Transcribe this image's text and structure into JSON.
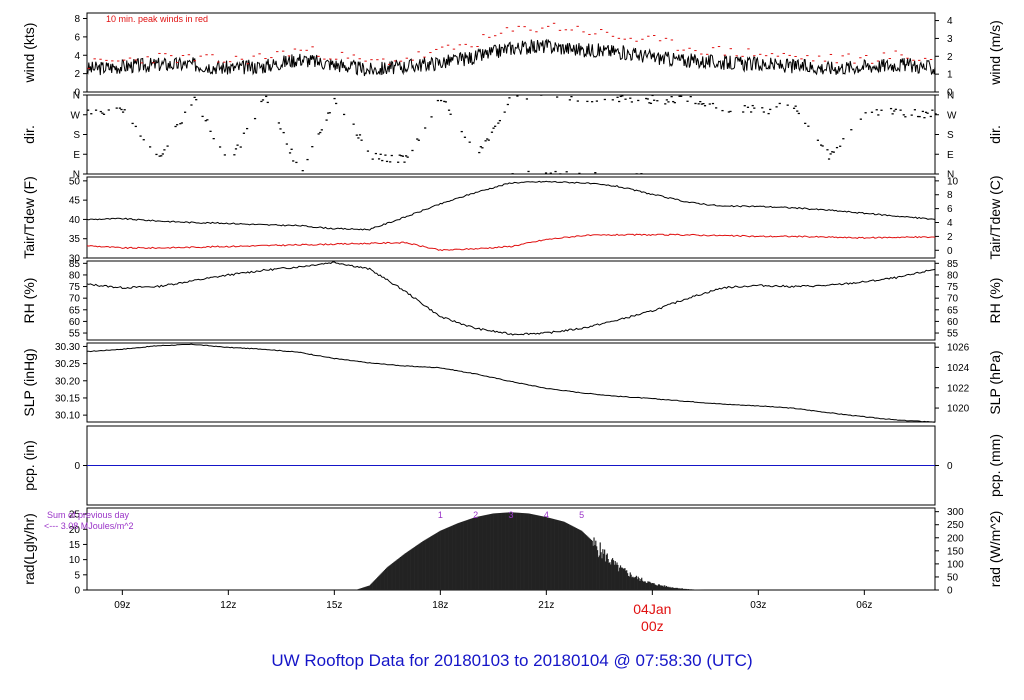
{
  "chart_data": {
    "type": "line",
    "title": "UW Rooftop Data for 20180103  to  20180104 @ 07:58:30  (UTC)",
    "x_axis": {
      "ticks": [
        "09z",
        "12z",
        "15z",
        "18z",
        "21z",
        "00z",
        "03z",
        "06z"
      ],
      "tick_hours": [
        9,
        12,
        15,
        18,
        21,
        24,
        27,
        30
      ],
      "range_hours": [
        8,
        32
      ],
      "day_marker": {
        "label_top": "04Jan",
        "label_bottom": "00z",
        "hour": 24,
        "color": "#e01010"
      }
    },
    "panels": [
      {
        "id": "wind",
        "ylabel_left": "wind (kts)",
        "ylabel_right": "wind (m/s)",
        "left_ticks": [
          0,
          2,
          4,
          6,
          8
        ],
        "left_range": [
          0,
          8.6
        ],
        "right_ticks": [
          0,
          1,
          2,
          3,
          4
        ],
        "right_factor": 0.5144,
        "annotation": "10 min. peak winds in red",
        "annotation_color": "#e01010",
        "series": [
          {
            "name": "wind speed",
            "color": "#000000",
            "x": [
              8,
              9,
              10,
              11,
              12,
              13,
              14,
              15,
              16,
              17,
              18,
              19,
              20,
              21,
              22,
              23,
              24,
              25,
              26,
              27,
              28,
              29,
              30,
              31,
              32
            ],
            "y": [
              2.5,
              2.8,
              3.0,
              3.0,
              2.6,
              2.8,
              3.6,
              3.0,
              2.4,
              2.8,
              3.2,
              3.8,
              4.8,
              5.0,
              4.6,
              4.4,
              3.8,
              3.4,
              3.2,
              3.0,
              2.8,
              2.6,
              2.8,
              3.0,
              2.6
            ]
          },
          {
            "name": "peak winds",
            "color": "#e01010",
            "x": [
              8,
              9,
              10,
              11,
              12,
              13,
              14,
              15,
              16,
              17,
              18,
              19,
              20,
              21,
              22,
              23,
              24,
              25,
              26,
              27,
              28,
              29,
              30,
              31,
              32
            ],
            "y": [
              3.0,
              3.4,
              3.8,
              3.6,
              3.4,
              3.8,
              4.6,
              4.0,
              3.2,
              3.6,
              4.4,
              5.4,
              6.6,
              7.2,
              6.8,
              6.0,
              5.6,
              4.8,
              4.4,
              4.2,
              3.8,
              3.6,
              3.6,
              4.0,
              3.4
            ]
          }
        ]
      },
      {
        "id": "dir",
        "ylabel_left": "dir.",
        "ylabel_right": "dir.",
        "left_ticks": [
          "N",
          "E",
          "S",
          "W",
          "N"
        ],
        "left_values": [
          0,
          90,
          180,
          270,
          360
        ],
        "left_range": [
          0,
          360
        ],
        "series": [
          {
            "name": "direction",
            "color": "#000000",
            "x": [
              8,
              9,
              10,
              11,
              12,
              13,
              14,
              15,
              16,
              17,
              18,
              19,
              20,
              21,
              22,
              23,
              24,
              25,
              26,
              27,
              28,
              29,
              30,
              31,
              32
            ],
            "y": [
              285,
              290,
              60,
              350,
              40,
              355,
              10,
              345,
              80,
              70,
              350,
              75,
              350,
              355,
              350,
              345,
              340,
              335,
              300,
              290,
              310,
              80,
              290,
              280,
              275
            ]
          }
        ]
      },
      {
        "id": "temp",
        "ylabel_left": "Tair/Tdew (F)",
        "ylabel_right": "Tair/Tdew (C)",
        "left_ticks": [
          30,
          35,
          40,
          45,
          50
        ],
        "left_range": [
          30,
          51
        ],
        "right_ticks": [
          0,
          2,
          4,
          6,
          8,
          10
        ],
        "series": [
          {
            "name": "Tair",
            "color": "#000000",
            "x": [
              8,
              9,
              10,
              11,
              12,
              13,
              14,
              15,
              16,
              17,
              18,
              19,
              20,
              21,
              22,
              23,
              24,
              25,
              26,
              27,
              28,
              29,
              30,
              31,
              32
            ],
            "y": [
              40.0,
              40.2,
              39.6,
              39.2,
              39.0,
              38.6,
              38.4,
              37.6,
              37.4,
              40.6,
              44.0,
              47.0,
              49.5,
              49.8,
              49.5,
              48.6,
              46.5,
              44.5,
              43.4,
              43.4,
              43.0,
              42.4,
              41.6,
              40.8,
              40.0
            ]
          },
          {
            "name": "Tdew",
            "color": "#e01010",
            "x": [
              8,
              9,
              10,
              11,
              12,
              13,
              14,
              15,
              16,
              17,
              18,
              19,
              20,
              21,
              22,
              23,
              24,
              25,
              26,
              27,
              28,
              29,
              30,
              31,
              32
            ],
            "y": [
              33.2,
              32.6,
              32.6,
              32.8,
              33.0,
              33.2,
              33.4,
              33.6,
              33.8,
              34.0,
              32.0,
              32.4,
              33.0,
              34.8,
              35.8,
              36.0,
              36.0,
              36.0,
              35.8,
              35.6,
              35.6,
              35.4,
              35.2,
              35.4,
              35.4
            ]
          }
        ]
      },
      {
        "id": "rh",
        "ylabel_left": "RH (%)",
        "ylabel_right": "RH (%)",
        "left_ticks": [
          55,
          60,
          65,
          70,
          75,
          80,
          85
        ],
        "left_range": [
          52,
          86
        ],
        "right_ticks": [
          55,
          60,
          65,
          70,
          75,
          80,
          85
        ],
        "series": [
          {
            "name": "RH",
            "color": "#000000",
            "x": [
              8,
              9,
              10,
              11,
              12,
              13,
              14,
              15,
              16,
              17,
              18,
              19,
              20,
              21,
              22,
              23,
              24,
              25,
              26,
              27,
              28,
              29,
              30,
              31,
              32
            ],
            "y": [
              76,
              74.5,
              75,
              77.5,
              80,
              82,
              83.5,
              85.5,
              82.5,
              73,
              62,
              57,
              54.5,
              55,
              57,
              60.5,
              64.5,
              70,
              74.5,
              75.5,
              75,
              75.5,
              77,
              79,
              82.5
            ]
          }
        ]
      },
      {
        "id": "slp",
        "ylabel_left": "SLP (inHg)",
        "ylabel_right": "SLP (hPa)",
        "left_ticks": [
          "30.10",
          "30.15",
          "30.20",
          "30.25",
          "30.30"
        ],
        "left_values": [
          30.1,
          30.15,
          30.2,
          30.25,
          30.3
        ],
        "left_range": [
          30.08,
          30.31
        ],
        "right_ticks": [
          1020,
          1022,
          1024,
          1026
        ],
        "series": [
          {
            "name": "SLP",
            "color": "#000000",
            "x": [
              8,
              9,
              10,
              11,
              12,
              13,
              14,
              15,
              16,
              17,
              18,
              19,
              20,
              21,
              22,
              23,
              24,
              25,
              26,
              27,
              28,
              29,
              30,
              31,
              32
            ],
            "y": [
              30.285,
              30.292,
              30.302,
              30.306,
              30.297,
              30.292,
              30.283,
              30.265,
              30.252,
              30.243,
              30.238,
              30.22,
              30.198,
              30.178,
              30.165,
              30.155,
              30.148,
              30.14,
              30.132,
              30.127,
              30.12,
              30.107,
              30.095,
              30.085,
              30.08
            ]
          }
        ]
      },
      {
        "id": "pcp",
        "ylabel_left": "pcp. (in)",
        "ylabel_right": "pcp. (mm)",
        "left_ticks": [
          0
        ],
        "left_range": [
          -0.4,
          0.4
        ],
        "right_ticks": [
          0
        ],
        "series": [
          {
            "name": "precipitation",
            "color": "#1515c8",
            "x": [
              8,
              32
            ],
            "y": [
              0,
              0
            ]
          }
        ]
      },
      {
        "id": "rad",
        "ylabel_left": "rad(Lgly/hr)",
        "ylabel_right": "rad (W/m^2)",
        "left_ticks": [
          0,
          5,
          10,
          15,
          20,
          25
        ],
        "left_range": [
          0,
          27
        ],
        "right_ticks": [
          0,
          50,
          100,
          150,
          200,
          250,
          300
        ],
        "sum_label_line1": "Sum of previous day",
        "sum_label_line2": "<--- 3.08 MJoules/m^2",
        "sum_label_color": "#9a33c8",
        "uv_markers": [
          "1",
          "2",
          "3",
          "4",
          "5"
        ],
        "uv_marker_hours": [
          18,
          19,
          20,
          21,
          22
        ],
        "uv_marker_color": "#9a33c8",
        "series": [
          {
            "name": "solar radiation",
            "color": "#222222",
            "x": [
              15.6,
              16.0,
              16.5,
              17.0,
              17.5,
              18.0,
              18.5,
              19.0,
              19.5,
              20.0,
              20.5,
              21.0,
              21.5,
              22.0,
              22.5,
              23.0,
              23.5,
              24.0,
              24.5,
              25.0,
              25.5
            ],
            "y": [
              0,
              1.5,
              7.5,
              12,
              16,
              19.5,
              22,
              24,
              25.2,
              25.6,
              25.2,
              24,
              22.5,
              19.5,
              14,
              8,
              4.5,
              2.2,
              1.0,
              0.3,
              0
            ]
          }
        ]
      }
    ]
  }
}
